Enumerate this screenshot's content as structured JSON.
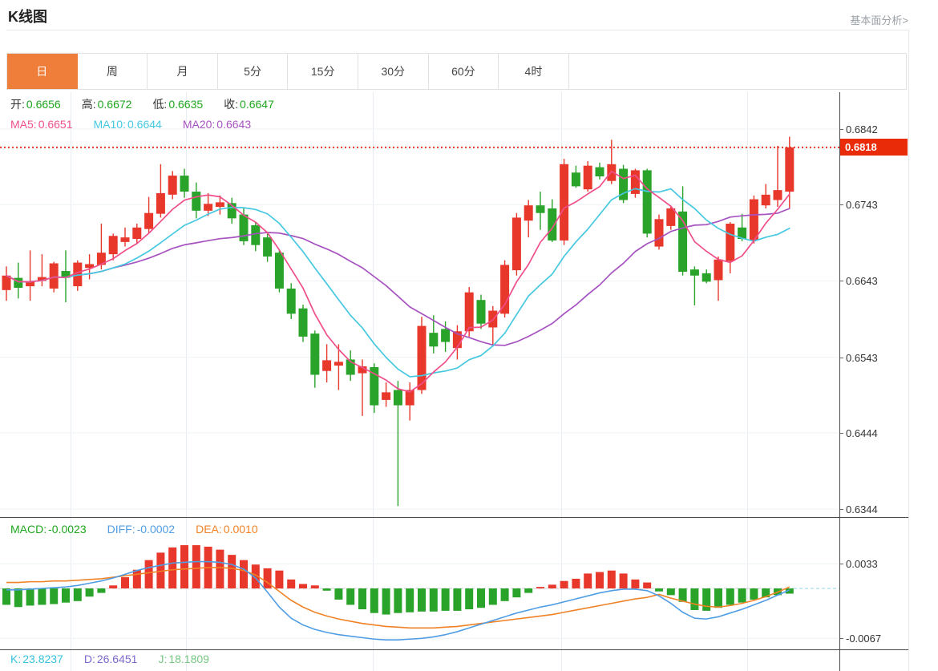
{
  "header": {
    "title": "K线图",
    "analysis_link": "基本面分析>"
  },
  "tabs": {
    "items": [
      "日",
      "周",
      "月",
      "5分",
      "15分",
      "30分",
      "60分",
      "4时"
    ],
    "active_index": 0
  },
  "main_legend": {
    "ohlc": [
      {
        "label": "开:",
        "value": "0.6656"
      },
      {
        "label": "高:",
        "value": "0.6672"
      },
      {
        "label": "低:",
        "value": "0.6635"
      },
      {
        "label": "收:",
        "value": "0.6647"
      }
    ],
    "ma": [
      {
        "label": "MA5:",
        "value": "0.6651"
      },
      {
        "label": "MA10:",
        "value": "0.6644"
      },
      {
        "label": "MA20:",
        "value": "0.6643"
      }
    ]
  },
  "macd_legend": [
    {
      "label": "MACD:",
      "value": "-0.0023"
    },
    {
      "label": "DIFF:",
      "value": "-0.0002"
    },
    {
      "label": "DEA:",
      "value": "0.0010"
    }
  ],
  "kdj_legend": [
    {
      "label": "K:",
      "value": "23.8237"
    },
    {
      "label": "D:",
      "value": "26.6451"
    },
    {
      "label": "J:",
      "value": "18.1809"
    }
  ],
  "price_axis": {
    "ticks": [
      {
        "label": "0.6842",
        "price": 0.6842
      },
      {
        "label": "0.6743",
        "price": 0.6743
      },
      {
        "label": "0.6643",
        "price": 0.6643
      },
      {
        "label": "0.6543",
        "price": 0.6543
      },
      {
        "label": "0.6444",
        "price": 0.6444
      },
      {
        "label": "0.6344",
        "price": 0.6344
      }
    ],
    "current": {
      "label": "0.6818",
      "price": 0.6818
    }
  },
  "macd_axis": {
    "ticks": [
      {
        "label": "0.0033",
        "value": 0.0033
      },
      {
        "label": "-0.0067",
        "value": -0.0067
      }
    ]
  },
  "colors": {
    "up": "#e8372b",
    "down": "#2aa32a",
    "ma5": "#ef4e8a",
    "ma10": "#45c8e0",
    "ma20": "#a653c0",
    "diff": "#4f9de4",
    "dea": "#f08226",
    "macd_text": "#1fa61f",
    "current_price_line": "#ea3a2a",
    "current_price_bg": "#ea2b09",
    "active_tab": "#ef7e3b",
    "k": "#35c2dc",
    "d": "#7d68ce",
    "j": "#76c77f",
    "grid": "#e7edf3",
    "axis": "#4a4a4a",
    "link": "#9aa0a6"
  },
  "chart_data": {
    "type": "candlestick",
    "interval": "日",
    "price_range": [
      0.6344,
      0.6842
    ],
    "current_price": 0.6818,
    "ma_periods": [
      5,
      10,
      20
    ],
    "candles_ohlc": [
      [
        0.6631,
        0.6662,
        0.6617,
        0.665
      ],
      [
        0.6647,
        0.6667,
        0.662,
        0.6634
      ],
      [
        0.6636,
        0.6683,
        0.6617,
        0.6642
      ],
      [
        0.6643,
        0.6678,
        0.6636,
        0.6648
      ],
      [
        0.6633,
        0.6668,
        0.6628,
        0.6666
      ],
      [
        0.6656,
        0.6683,
        0.6615,
        0.6647
      ],
      [
        0.6636,
        0.667,
        0.663,
        0.6667
      ],
      [
        0.666,
        0.6678,
        0.6645,
        0.6665
      ],
      [
        0.6664,
        0.6718,
        0.6658,
        0.668
      ],
      [
        0.6678,
        0.6705,
        0.667,
        0.6702
      ],
      [
        0.6694,
        0.6713,
        0.6688,
        0.67
      ],
      [
        0.6698,
        0.6718,
        0.6692,
        0.6713
      ],
      [
        0.6711,
        0.6753,
        0.6705,
        0.6732
      ],
      [
        0.6731,
        0.6796,
        0.6726,
        0.6758
      ],
      [
        0.6756,
        0.6787,
        0.675,
        0.6781
      ],
      [
        0.6781,
        0.679,
        0.6752,
        0.676
      ],
      [
        0.676,
        0.6772,
        0.6725,
        0.6735
      ],
      [
        0.6735,
        0.6758,
        0.6728,
        0.6744
      ],
      [
        0.674,
        0.6755,
        0.673,
        0.6746
      ],
      [
        0.6745,
        0.6752,
        0.6718,
        0.6725
      ],
      [
        0.673,
        0.6738,
        0.669,
        0.6695
      ],
      [
        0.6716,
        0.672,
        0.6682,
        0.669
      ],
      [
        0.67,
        0.6705,
        0.6668,
        0.6675
      ],
      [
        0.668,
        0.6684,
        0.6628,
        0.6633
      ],
      [
        0.6633,
        0.664,
        0.6593,
        0.66
      ],
      [
        0.6607,
        0.6612,
        0.6563,
        0.657
      ],
      [
        0.6574,
        0.6578,
        0.6503,
        0.652
      ],
      [
        0.6525,
        0.656,
        0.651,
        0.6539
      ],
      [
        0.6532,
        0.656,
        0.65,
        0.6537
      ],
      [
        0.654,
        0.6552,
        0.6512,
        0.652
      ],
      [
        0.6522,
        0.654,
        0.6466,
        0.6531
      ],
      [
        0.653,
        0.6535,
        0.647,
        0.648
      ],
      [
        0.6487,
        0.651,
        0.6478,
        0.6497
      ],
      [
        0.65,
        0.6512,
        0.6348,
        0.648
      ],
      [
        0.648,
        0.651,
        0.646,
        0.65
      ],
      [
        0.65,
        0.6596,
        0.6495,
        0.6584
      ],
      [
        0.6575,
        0.6598,
        0.6548,
        0.6557
      ],
      [
        0.658,
        0.659,
        0.655,
        0.6563
      ],
      [
        0.6555,
        0.6585,
        0.654,
        0.6577
      ],
      [
        0.6577,
        0.6635,
        0.657,
        0.6628
      ],
      [
        0.6618,
        0.6625,
        0.658,
        0.6587
      ],
      [
        0.6582,
        0.661,
        0.6558,
        0.6604
      ],
      [
        0.66,
        0.667,
        0.6595,
        0.6664
      ],
      [
        0.6657,
        0.6732,
        0.665,
        0.6726
      ],
      [
        0.6722,
        0.6749,
        0.67,
        0.6742
      ],
      [
        0.6742,
        0.676,
        0.671,
        0.6732
      ],
      [
        0.6738,
        0.675,
        0.6694,
        0.6696
      ],
      [
        0.6696,
        0.6803,
        0.669,
        0.6796
      ],
      [
        0.6785,
        0.6794,
        0.6765,
        0.6767
      ],
      [
        0.6763,
        0.68,
        0.676,
        0.6794
      ],
      [
        0.6792,
        0.6798,
        0.6776,
        0.678
      ],
      [
        0.6774,
        0.6828,
        0.677,
        0.6796
      ],
      [
        0.679,
        0.6795,
        0.6745,
        0.6749
      ],
      [
        0.6757,
        0.679,
        0.6752,
        0.6788
      ],
      [
        0.6788,
        0.679,
        0.67,
        0.6705
      ],
      [
        0.6688,
        0.673,
        0.6684,
        0.6724
      ],
      [
        0.6715,
        0.6742,
        0.671,
        0.6738
      ],
      [
        0.6734,
        0.6767,
        0.665,
        0.6655
      ],
      [
        0.6658,
        0.6662,
        0.6611,
        0.665
      ],
      [
        0.6653,
        0.6658,
        0.664,
        0.6642
      ],
      [
        0.6644,
        0.6675,
        0.6617,
        0.6671
      ],
      [
        0.6669,
        0.672,
        0.6653,
        0.6718
      ],
      [
        0.6713,
        0.6731,
        0.6695,
        0.6698
      ],
      [
        0.6696,
        0.6755,
        0.6692,
        0.675
      ],
      [
        0.6742,
        0.677,
        0.6738,
        0.6756
      ],
      [
        0.6749,
        0.682,
        0.674,
        0.6762
      ],
      [
        0.676,
        0.6832,
        0.6738,
        0.6818
      ]
    ],
    "macd": {
      "range": [
        -0.0067,
        0.0033
      ],
      "histogram": [
        -0.0022,
        -0.0025,
        -0.0023,
        -0.0022,
        -0.0021,
        -0.0019,
        -0.0017,
        -0.0011,
        -0.0006,
        0.0004,
        0.0015,
        0.0025,
        0.0038,
        0.0048,
        0.0055,
        0.0058,
        0.0058,
        0.0056,
        0.0052,
        0.0045,
        0.0038,
        0.0032,
        0.0027,
        0.0024,
        0.0012,
        0.0006,
        0.0004,
        -0.0003,
        -0.0015,
        -0.0022,
        -0.0028,
        -0.0033,
        -0.0035,
        -0.0033,
        -0.0032,
        -0.0031,
        -0.0031,
        -0.003,
        -0.003,
        -0.0028,
        -0.0026,
        -0.0022,
        -0.0017,
        -0.0012,
        -0.0006,
        0.0002,
        0.0005,
        0.001,
        0.0013,
        0.002,
        0.0022,
        0.0024,
        0.002,
        0.0012,
        0.0008,
        -0.0004,
        -0.0009,
        -0.0018,
        -0.0029,
        -0.003,
        -0.0026,
        -0.0022,
        -0.0019,
        -0.0015,
        -0.0012,
        -0.0009,
        -0.0007
      ],
      "diff": [
        -0.0002,
        -0.0002,
        -0.0001,
        0.0,
        0.0001,
        0.0002,
        0.0004,
        0.0007,
        0.001,
        0.0014,
        0.0019,
        0.0024,
        0.0028,
        0.0031,
        0.0034,
        0.0035,
        0.0036,
        0.0036,
        0.0035,
        0.0032,
        0.0026,
        0.0014,
        -0.0005,
        -0.0025,
        -0.004,
        -0.0049,
        -0.0055,
        -0.0059,
        -0.0062,
        -0.0064,
        -0.0066,
        -0.0068,
        -0.0069,
        -0.0069,
        -0.0068,
        -0.0067,
        -0.0065,
        -0.0062,
        -0.0058,
        -0.0053,
        -0.0048,
        -0.0043,
        -0.0038,
        -0.0033,
        -0.0029,
        -0.0025,
        -0.0022,
        -0.0018,
        -0.0014,
        -0.001,
        -0.0006,
        -0.0003,
        -0.0001,
        -0.0001,
        -0.0003,
        -0.001,
        -0.002,
        -0.0032,
        -0.004,
        -0.0041,
        -0.0038,
        -0.0033,
        -0.0028,
        -0.0022,
        -0.0016,
        -0.0009,
        -0.0002
      ],
      "dea": [
        0.0008,
        0.0008,
        0.0009,
        0.0009,
        0.001,
        0.001,
        0.0011,
        0.0012,
        0.0013,
        0.0015,
        0.0017,
        0.0019,
        0.0021,
        0.0023,
        0.0025,
        0.0026,
        0.0027,
        0.0028,
        0.0028,
        0.0027,
        0.0024,
        0.0018,
        0.0008,
        -0.0004,
        -0.0016,
        -0.0025,
        -0.0032,
        -0.0037,
        -0.0041,
        -0.0044,
        -0.0047,
        -0.0049,
        -0.0051,
        -0.0052,
        -0.0053,
        -0.0053,
        -0.0053,
        -0.0052,
        -0.0051,
        -0.0049,
        -0.0047,
        -0.0045,
        -0.0043,
        -0.0041,
        -0.0039,
        -0.0037,
        -0.0035,
        -0.0032,
        -0.0029,
        -0.0026,
        -0.0023,
        -0.002,
        -0.0017,
        -0.0014,
        -0.0012,
        -0.0008,
        -0.0013,
        -0.0017,
        -0.0021,
        -0.0024,
        -0.0025,
        -0.0023,
        -0.002,
        -0.0016,
        -0.0011,
        -0.0005,
        0.0002
      ]
    }
  }
}
